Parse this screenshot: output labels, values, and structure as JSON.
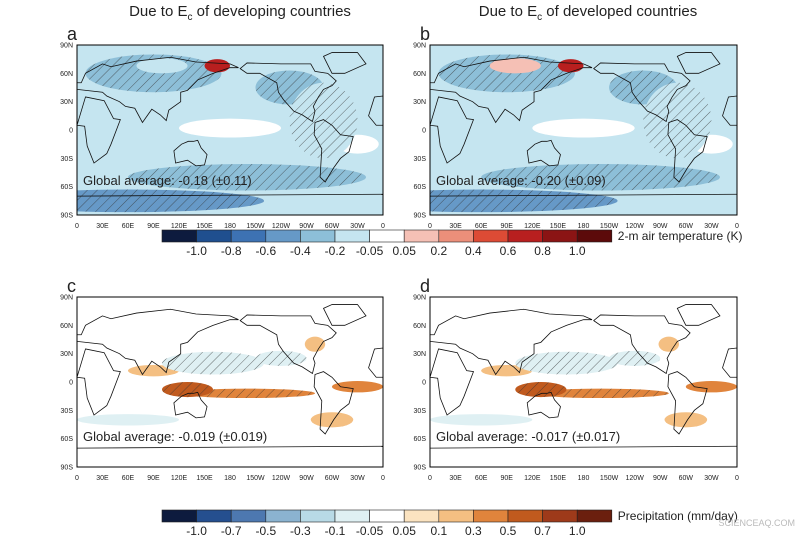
{
  "titles": [
    {
      "text": "Due to E",
      "sub": "c",
      "rest": " of developing countries"
    },
    {
      "text": "Due to E",
      "sub": "c",
      "rest": " of developed countries"
    }
  ],
  "panels": [
    {
      "letter": "a",
      "global_average": "Global average: -0.18 (±0.11)"
    },
    {
      "letter": "b",
      "global_average": "Global average: -0.20 (±0.09)"
    },
    {
      "letter": "c",
      "global_average": "Global average: -0.019 (±0.019)"
    },
    {
      "letter": "d",
      "global_average": "Global average: -0.017 (±0.017)"
    }
  ],
  "lat_labels": [
    "90N",
    "60N",
    "30N",
    "0",
    "30S",
    "60S",
    "90S"
  ],
  "lon_labels": [
    "0",
    "30E",
    "60E",
    "90E",
    "120E",
    "150E",
    "180",
    "150W",
    "120W",
    "90W",
    "60W",
    "30W",
    "0"
  ],
  "colorbars": [
    {
      "label": "2-m air temperature (K)",
      "ticks": [
        "-1.0",
        "-0.8",
        "-0.6",
        "-0.4",
        "-0.2",
        "-0.05",
        "0.05",
        "0.2",
        "0.4",
        "0.6",
        "0.8",
        "1.0"
      ],
      "colors": [
        "#0d1b3e",
        "#1f4f8f",
        "#3d72b3",
        "#6699c7",
        "#8dbfd8",
        "#c5e5f0",
        "#ffffff",
        "#f5c0b5",
        "#ec8f7a",
        "#dd4b35",
        "#b81f1f",
        "#8b1414",
        "#5c0a0a"
      ]
    },
    {
      "label": "Precipitation (mm/day)",
      "ticks": [
        "-1.0",
        "-0.7",
        "-0.5",
        "-0.3",
        "-0.1",
        "-0.05",
        "0.05",
        "0.1",
        "0.3",
        "0.5",
        "0.7",
        "1.0"
      ],
      "colors": [
        "#0d1b3e",
        "#254f8f",
        "#4d78b0",
        "#8bb3d0",
        "#b8dae6",
        "#dff0f3",
        "#ffffff",
        "#fbe3c0",
        "#f4bf82",
        "#e0843c",
        "#c05a1e",
        "#9e3a1a",
        "#6b1f0e"
      ]
    }
  ],
  "watermark": "SCIENCEAQ.COM"
}
